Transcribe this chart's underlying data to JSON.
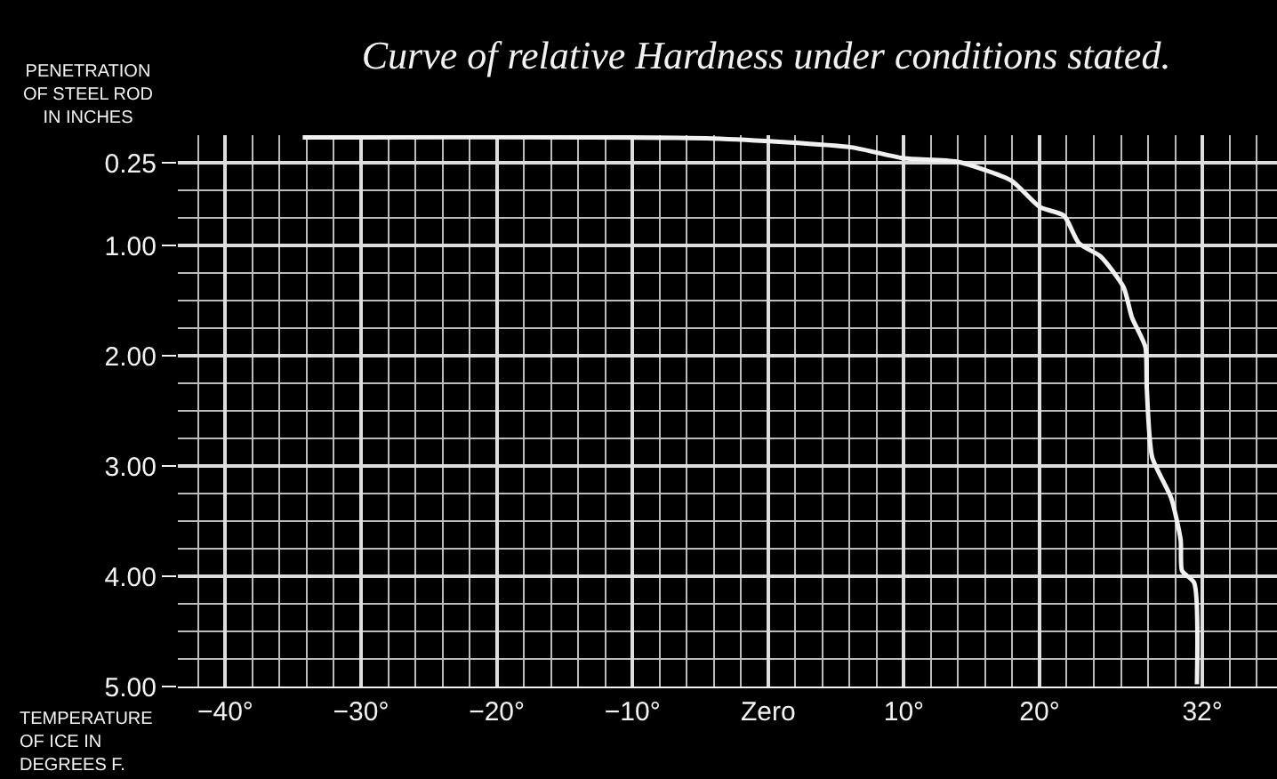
{
  "chart_data": {
    "type": "line",
    "title": "Curve of relative Hardness under conditions stated.",
    "ylabel": "PENETRATION\nOF STEEL ROD\nIN INCHES",
    "xlabel": "TEMPERATURE\nOF ICE IN\nDEGREES F.",
    "x": [
      -34.3,
      -4.1,
      6.1,
      10.0,
      13.9,
      17.9,
      20.0,
      21.8,
      22.9,
      24.5,
      26.2,
      26.8,
      27.8,
      27.9,
      28.3,
      29.7,
      30.4,
      30.5,
      31.4,
      31.6
    ],
    "series": [
      {
        "color": "#f0f0f0",
        "values": [
          0.02,
          0.03,
          0.11,
          0.21,
          0.24,
          0.41,
          0.65,
          0.73,
          0.98,
          1.1,
          1.38,
          1.65,
          1.92,
          2.29,
          2.92,
          3.29,
          3.67,
          3.95,
          4.06,
          4.98
        ]
      }
    ],
    "xlim": [
      -43.5,
      37.5
    ],
    "xticks": [
      {
        "value": -40,
        "label": "−40°"
      },
      {
        "value": -30,
        "label": "−30°"
      },
      {
        "value": -20,
        "label": "−20°"
      },
      {
        "value": -10,
        "label": "−10°"
      },
      {
        "value": 0,
        "label": "Zero"
      },
      {
        "value": 10,
        "label": "10°"
      },
      {
        "value": 20,
        "label": "20°"
      },
      {
        "value": 32,
        "label": "32°"
      }
    ],
    "ylim": [
      5,
      0
    ],
    "yticks": [
      {
        "value": 0.25,
        "label": "0.25"
      },
      {
        "value": 1,
        "label": "1.00"
      },
      {
        "value": 2,
        "label": "2.00"
      },
      {
        "value": 3,
        "label": "3.00"
      },
      {
        "value": 4,
        "label": "4.00"
      },
      {
        "value": 5,
        "label": "5.00"
      }
    ],
    "grid": true,
    "marker": "none",
    "line_style": "solid"
  }
}
